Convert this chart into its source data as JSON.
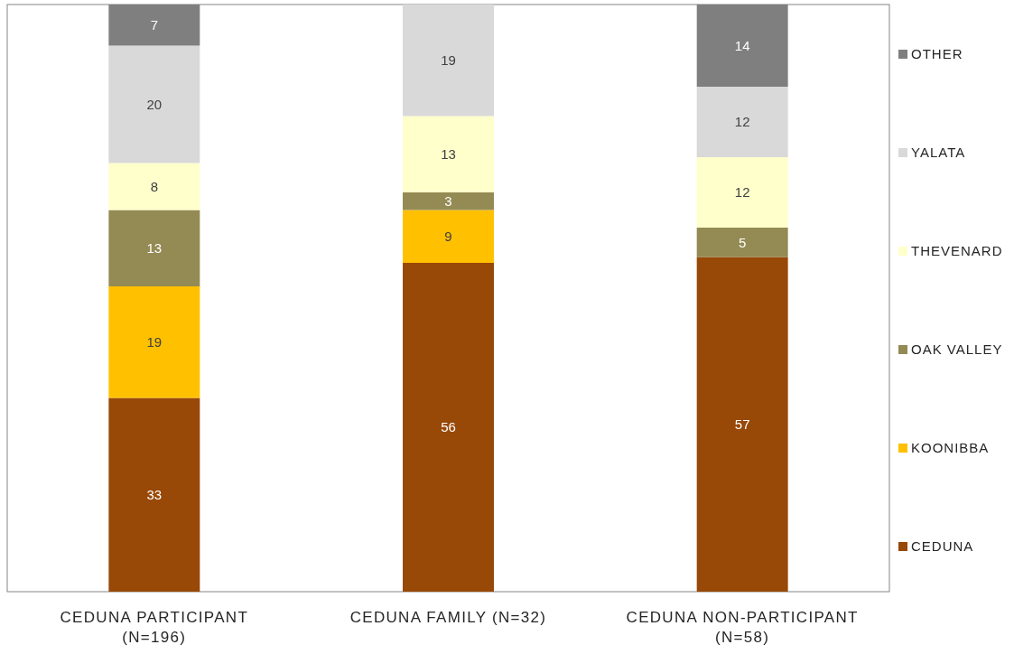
{
  "chart_data": {
    "type": "bar",
    "stacked": true,
    "data_labels": true,
    "legend": "right",
    "tick_labels": "x",
    "ylim": [
      0,
      100
    ],
    "categories": [
      "CEDUNA PARTICIPANT (N=196)",
      "CEDUNA FAMILY (N=32)",
      "CEDUNA NON-PARTICIPANT (N=58)"
    ],
    "series": [
      {
        "name": "CEDUNA",
        "color": "#984807",
        "values": [
          33,
          56,
          57
        ]
      },
      {
        "name": "KOONIBBA",
        "color": "#ffc000",
        "values": [
          19,
          9,
          null
        ]
      },
      {
        "name": "OAK VALLEY",
        "color": "#948a54",
        "values": [
          13,
          3,
          5
        ]
      },
      {
        "name": "THEVENARD",
        "color": "#ffffcc",
        "values": [
          8,
          13,
          12
        ]
      },
      {
        "name": "YALATA",
        "color": "#d9d9d9",
        "values": [
          20,
          19,
          12
        ]
      },
      {
        "name": "OTHER",
        "color": "#7f7f7f",
        "values": [
          7,
          null,
          14
        ]
      }
    ]
  }
}
